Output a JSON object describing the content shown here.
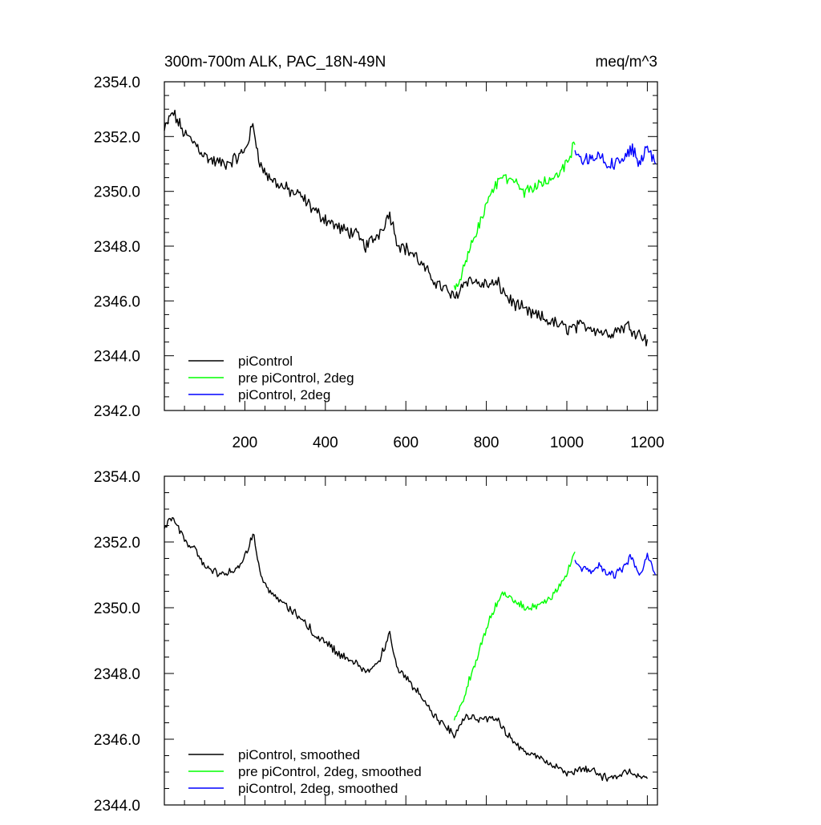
{
  "chart_data": [
    {
      "type": "line",
      "title_left": "300m-700m ALK, PAC_18N-49N",
      "title_right": "meq/m^3",
      "xlabel": "",
      "ylabel": "",
      "xlim": [
        0,
        1225
      ],
      "ylim": [
        2342,
        2354
      ],
      "x_ticks": [
        200,
        400,
        600,
        800,
        1000,
        1200
      ],
      "x_tick_labels": [
        "200",
        "400",
        "600",
        "800",
        "1000",
        "1200"
      ],
      "y_ticks": [
        2342,
        2344,
        2346,
        2348,
        2350,
        2352,
        2354
      ],
      "y_tick_labels": [
        "2342.0",
        "2344.0",
        "2346.0",
        "2348.0",
        "2350.0",
        "2352.0",
        "2354.0"
      ],
      "legend_position": "bottom-left",
      "series": [
        {
          "name": "piControl",
          "color": "#000000",
          "x": [
            0,
            20,
            50,
            80,
            100,
            120,
            150,
            180,
            200,
            220,
            240,
            260,
            300,
            340,
            380,
            400,
            440,
            470,
            500,
            530,
            560,
            580,
            620,
            660,
            690,
            700,
            720,
            750,
            790,
            830,
            860,
            900,
            950,
            1000,
            1050,
            1100,
            1150,
            1200
          ],
          "values": [
            2352.2,
            2352.9,
            2352.1,
            2351.7,
            2351.3,
            2351.1,
            2351.0,
            2351.2,
            2351.5,
            2352.4,
            2350.9,
            2350.5,
            2350.1,
            2349.8,
            2349.2,
            2349.0,
            2348.6,
            2348.5,
            2348.0,
            2348.4,
            2349.2,
            2348.1,
            2347.7,
            2346.9,
            2346.5,
            2346.4,
            2346.1,
            2346.8,
            2346.6,
            2346.6,
            2346.0,
            2345.6,
            2345.3,
            2345.0,
            2345.1,
            2344.8,
            2345.1,
            2344.6
          ]
        },
        {
          "name": "pre piControl, 2deg",
          "color": "#00ff00",
          "x": [
            720,
            740,
            760,
            780,
            800,
            820,
            840,
            860,
            880,
            900,
            930,
            960,
            990,
            1020
          ],
          "values": [
            2346.4,
            2347.0,
            2347.9,
            2348.6,
            2349.5,
            2350.1,
            2350.5,
            2350.4,
            2350.2,
            2350.0,
            2350.2,
            2350.4,
            2350.8,
            2351.7
          ]
        },
        {
          "name": "piControl, 2deg",
          "color": "#0000ff",
          "x": [
            1020,
            1040,
            1060,
            1080,
            1100,
            1120,
            1140,
            1160,
            1180,
            1200,
            1220
          ],
          "values": [
            2351.4,
            2351.2,
            2351.1,
            2351.3,
            2351.0,
            2351.0,
            2351.2,
            2351.6,
            2351.0,
            2351.6,
            2351.0
          ]
        }
      ]
    },
    {
      "type": "line",
      "xlabel": "",
      "ylabel": "",
      "xlim": [
        0,
        1225
      ],
      "ylim": [
        2344,
        2354
      ],
      "y_ticks": [
        2344,
        2346,
        2348,
        2350,
        2352,
        2354
      ],
      "y_tick_labels": [
        "2344.0",
        "2346.0",
        "2348.0",
        "2350.0",
        "2352.0",
        "2354.0"
      ],
      "legend_position": "bottom-left",
      "series": [
        {
          "name": "piControl, smoothed",
          "color": "#000000",
          "x": [
            0,
            20,
            50,
            80,
            100,
            120,
            150,
            180,
            200,
            220,
            240,
            260,
            300,
            340,
            380,
            400,
            440,
            470,
            500,
            530,
            560,
            580,
            620,
            660,
            690,
            700,
            720,
            750,
            790,
            830,
            860,
            900,
            950,
            1000,
            1050,
            1100,
            1150,
            1200
          ],
          "values": [
            2352.4,
            2352.8,
            2352.1,
            2351.7,
            2351.3,
            2351.1,
            2351.0,
            2351.2,
            2351.5,
            2352.3,
            2350.9,
            2350.5,
            2350.1,
            2349.7,
            2349.1,
            2349.0,
            2348.5,
            2348.4,
            2348.0,
            2348.3,
            2349.2,
            2348.1,
            2347.6,
            2346.9,
            2346.5,
            2346.4,
            2346.1,
            2346.7,
            2346.6,
            2346.6,
            2346.0,
            2345.6,
            2345.3,
            2345.0,
            2345.1,
            2344.8,
            2345.0,
            2344.8
          ]
        },
        {
          "name": "pre piControl, 2deg, smoothed",
          "color": "#00ff00",
          "x": [
            720,
            740,
            760,
            780,
            800,
            820,
            840,
            860,
            880,
            900,
            930,
            960,
            990,
            1020
          ],
          "values": [
            2346.6,
            2347.1,
            2347.9,
            2348.6,
            2349.4,
            2350.0,
            2350.4,
            2350.3,
            2350.1,
            2350.0,
            2350.1,
            2350.3,
            2350.8,
            2351.7
          ]
        },
        {
          "name": "piControl, 2deg, smoothed",
          "color": "#0000ff",
          "x": [
            1020,
            1040,
            1060,
            1080,
            1100,
            1120,
            1140,
            1160,
            1180,
            1200,
            1220
          ],
          "values": [
            2351.4,
            2351.2,
            2351.1,
            2351.3,
            2351.0,
            2351.0,
            2351.2,
            2351.6,
            2351.0,
            2351.6,
            2351.0
          ]
        }
      ]
    }
  ]
}
